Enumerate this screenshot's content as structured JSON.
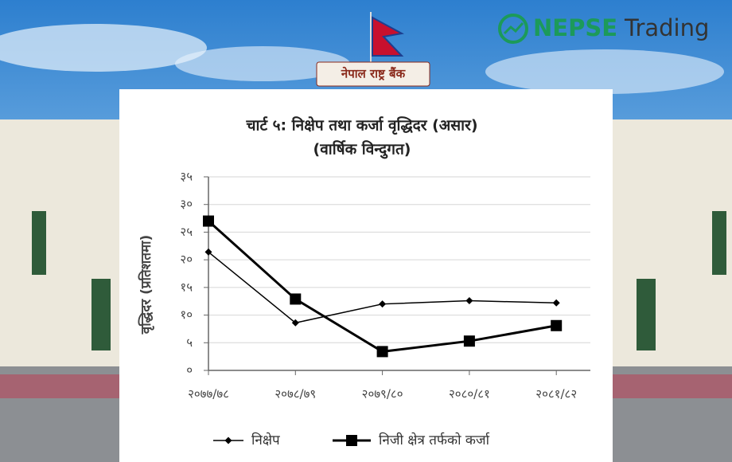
{
  "header": {
    "sign": "नेपाल राष्ट्र बैंक",
    "brand": "NEPSE",
    "brand_suffix": "Trading"
  },
  "chart_data": {
    "type": "line",
    "title": "चार्ट ५: निक्षेप तथा कर्जा वृद्धिदर (असार)",
    "subtitle": "(वार्षिक विन्दुगत)",
    "y_label": "वृद्धिदर (प्रतिशतमा)",
    "categories": [
      "२०७७/७८",
      "२०७८/७९",
      "२०७९/८०",
      "२०८०/८१",
      "२०८१/८२"
    ],
    "series": [
      {
        "name": "निक्षेप",
        "color": "#000000",
        "marker": "diamond",
        "values": [
          21.4,
          8.6,
          12.0,
          12.6,
          12.2
        ]
      },
      {
        "name": "निजी क्षेत्र तर्फको कर्जा",
        "color": "#000000",
        "marker": "square",
        "values": [
          27.0,
          12.9,
          3.4,
          5.3,
          8.1
        ]
      }
    ],
    "ylim": [
      0,
      35
    ],
    "yticks": [
      {
        "value": 0,
        "label": "०"
      },
      {
        "value": 5,
        "label": "५"
      },
      {
        "value": 10,
        "label": "१०"
      },
      {
        "value": 15,
        "label": "१५"
      },
      {
        "value": 20,
        "label": "२०"
      },
      {
        "value": 25,
        "label": "२५"
      },
      {
        "value": 30,
        "label": "३०"
      },
      {
        "value": 35,
        "label": "३५"
      }
    ],
    "grid": true,
    "legend": "bottom"
  }
}
